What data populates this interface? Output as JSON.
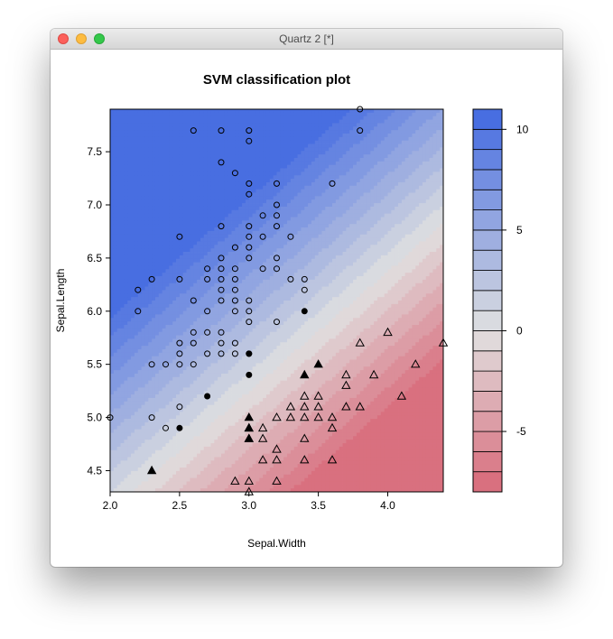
{
  "window": {
    "title": "Quartz 2 [*]"
  },
  "colors": {
    "positive": "#4169E1",
    "zero": "#E0E0E0",
    "negative": "#D86878"
  },
  "chart_data": {
    "type": "scatter",
    "title": "SVM classification plot",
    "xlabel": "Sepal.Width",
    "ylabel": "Sepal.Length",
    "xlim": [
      2.0,
      4.4
    ],
    "ylim": [
      4.3,
      7.9
    ],
    "x_ticks": [
      "2.0",
      "2.5",
      "3.0",
      "3.5",
      "4.0"
    ],
    "y_ticks": [
      "4.5",
      "5.0",
      "5.5",
      "6.0",
      "6.5",
      "7.0",
      "7.5"
    ],
    "background": "filled contour of SVM decision values",
    "colorbar": {
      "range": [
        -8,
        11
      ],
      "ticks": [
        "10",
        "5",
        "0",
        "-5"
      ],
      "levels": [
        -8,
        -7,
        -6,
        -5,
        -4,
        -3,
        -2,
        -1,
        0,
        1,
        2,
        3,
        4,
        5,
        6,
        7,
        8,
        9,
        10,
        11
      ]
    },
    "series": [
      {
        "marker": "open circle",
        "points": [
          [
            3.8,
            7.9
          ],
          [
            2.6,
            7.7
          ],
          [
            2.8,
            7.7
          ],
          [
            3.0,
            7.7
          ],
          [
            3.8,
            7.7
          ],
          [
            3.0,
            7.6
          ],
          [
            2.8,
            7.4
          ],
          [
            2.9,
            7.3
          ],
          [
            3.0,
            7.2
          ],
          [
            3.2,
            7.2
          ],
          [
            3.6,
            7.2
          ],
          [
            3.0,
            7.1
          ],
          [
            3.2,
            7.0
          ],
          [
            3.1,
            6.9
          ],
          [
            3.2,
            6.9
          ],
          [
            2.8,
            6.8
          ],
          [
            3.0,
            6.8
          ],
          [
            3.2,
            6.8
          ],
          [
            2.5,
            6.7
          ],
          [
            3.0,
            6.7
          ],
          [
            3.1,
            6.7
          ],
          [
            3.3,
            6.7
          ],
          [
            2.9,
            6.6
          ],
          [
            3.0,
            6.6
          ],
          [
            2.8,
            6.5
          ],
          [
            3.0,
            6.5
          ],
          [
            3.2,
            6.5
          ],
          [
            2.7,
            6.4
          ],
          [
            2.8,
            6.4
          ],
          [
            2.9,
            6.4
          ],
          [
            3.1,
            6.4
          ],
          [
            3.2,
            6.4
          ],
          [
            2.3,
            6.3
          ],
          [
            2.5,
            6.3
          ],
          [
            2.7,
            6.3
          ],
          [
            2.8,
            6.3
          ],
          [
            2.9,
            6.3
          ],
          [
            3.3,
            6.3
          ],
          [
            3.4,
            6.3
          ],
          [
            2.2,
            6.2
          ],
          [
            2.8,
            6.2
          ],
          [
            2.9,
            6.2
          ],
          [
            3.4,
            6.2
          ],
          [
            2.6,
            6.1
          ],
          [
            2.8,
            6.1
          ],
          [
            2.9,
            6.1
          ],
          [
            3.0,
            6.1
          ],
          [
            2.2,
            6.0
          ],
          [
            2.7,
            6.0
          ],
          [
            2.9,
            6.0
          ],
          [
            3.0,
            6.0
          ],
          [
            3.0,
            5.9
          ],
          [
            3.2,
            5.9
          ],
          [
            2.6,
            5.8
          ],
          [
            2.7,
            5.8
          ],
          [
            2.8,
            5.8
          ],
          [
            2.5,
            5.7
          ],
          [
            2.6,
            5.7
          ],
          [
            2.8,
            5.7
          ],
          [
            2.9,
            5.7
          ],
          [
            2.5,
            5.6
          ],
          [
            2.7,
            5.6
          ],
          [
            2.8,
            5.6
          ],
          [
            2.9,
            5.6
          ],
          [
            3.0,
            5.6
          ],
          [
            2.3,
            5.5
          ],
          [
            2.4,
            5.5
          ],
          [
            2.5,
            5.5
          ],
          [
            2.6,
            5.5
          ],
          [
            2.5,
            5.1
          ],
          [
            2.0,
            5.0
          ],
          [
            2.3,
            5.0
          ],
          [
            2.4,
            4.9
          ]
        ]
      },
      {
        "marker": "filled circle",
        "points": [
          [
            3.4,
            6.0
          ],
          [
            3.0,
            5.6
          ],
          [
            3.0,
            5.4
          ],
          [
            2.7,
            5.2
          ],
          [
            2.5,
            4.9
          ]
        ]
      },
      {
        "marker": "open triangle",
        "points": [
          [
            3.8,
            5.7
          ],
          [
            4.0,
            5.8
          ],
          [
            4.4,
            5.7
          ],
          [
            3.7,
            5.4
          ],
          [
            3.9,
            5.4
          ],
          [
            4.2,
            5.5
          ],
          [
            3.7,
            5.3
          ],
          [
            3.4,
            5.2
          ],
          [
            3.5,
            5.2
          ],
          [
            4.1,
            5.2
          ],
          [
            3.3,
            5.1
          ],
          [
            3.4,
            5.1
          ],
          [
            3.5,
            5.1
          ],
          [
            3.7,
            5.1
          ],
          [
            3.8,
            5.1
          ],
          [
            3.2,
            5.0
          ],
          [
            3.3,
            5.0
          ],
          [
            3.4,
            5.0
          ],
          [
            3.5,
            5.0
          ],
          [
            3.6,
            5.0
          ],
          [
            3.0,
            4.9
          ],
          [
            3.1,
            4.9
          ],
          [
            3.6,
            4.9
          ],
          [
            3.0,
            4.8
          ],
          [
            3.1,
            4.8
          ],
          [
            3.4,
            4.8
          ],
          [
            3.2,
            4.7
          ],
          [
            3.1,
            4.6
          ],
          [
            3.2,
            4.6
          ],
          [
            3.4,
            4.6
          ],
          [
            3.6,
            4.6
          ],
          [
            2.9,
            4.4
          ],
          [
            3.0,
            4.4
          ],
          [
            3.2,
            4.4
          ],
          [
            3.0,
            4.3
          ]
        ]
      },
      {
        "marker": "filled triangle",
        "points": [
          [
            3.4,
            5.4
          ],
          [
            3.5,
            5.5
          ],
          [
            3.0,
            5.0
          ],
          [
            3.0,
            4.9
          ],
          [
            3.0,
            4.8
          ],
          [
            2.3,
            4.5
          ]
        ]
      }
    ]
  }
}
